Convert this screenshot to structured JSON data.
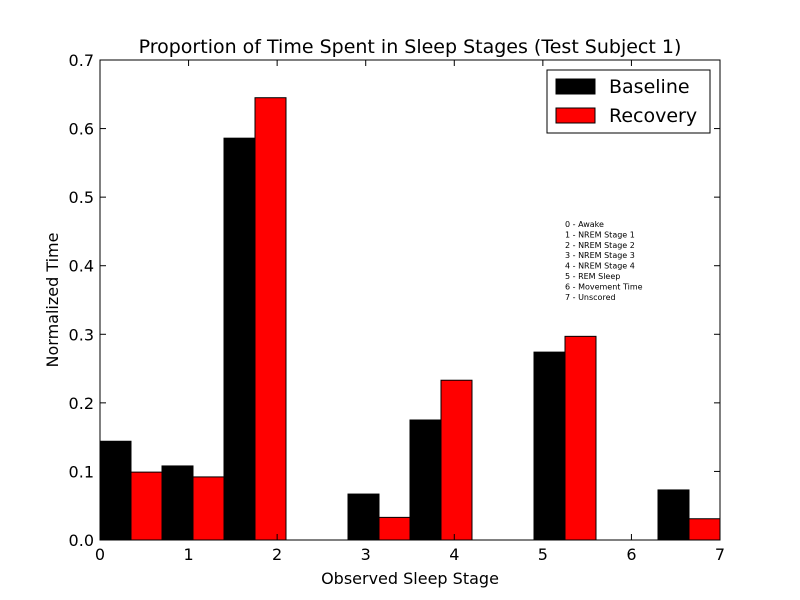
{
  "chart_data": {
    "type": "bar",
    "title": "Proportion of Time Spent in Sleep Stages (Test Subject 1)",
    "xlabel": "Observed Sleep Stage",
    "ylabel": "Normalized Time",
    "xlim": [
      0,
      7
    ],
    "ylim": [
      0,
      0.7
    ],
    "x_ticks": [
      "0",
      "1",
      "2",
      "3",
      "4",
      "5",
      "6",
      "7"
    ],
    "y_ticks": [
      "0.0",
      "0.1",
      "0.2",
      "0.3",
      "0.4",
      "0.5",
      "0.6",
      "0.7"
    ],
    "grid": false,
    "legend_position": "top-right",
    "series": [
      {
        "name": "Baseline",
        "color": "#000000",
        "values": [
          0.144,
          0.108,
          0.586,
          0.0,
          0.067,
          0.175,
          0.0,
          0.274,
          0.0,
          0.073
        ]
      },
      {
        "name": "Recovery",
        "color": "#ff0000",
        "values": [
          0.099,
          0.092,
          0.645,
          0.0,
          0.033,
          0.233,
          0.0,
          0.297,
          0.0,
          0.031
        ]
      }
    ],
    "annotation_lines": [
      "0 - Awake",
      "1 - NREM Stage 1",
      "2 - NREM Stage 2",
      "3 - NREM Stage 3",
      "4 - NREM Stage 4",
      "5 - REM Sleep",
      "6 - Movement Time",
      "7 - Unscored"
    ]
  }
}
